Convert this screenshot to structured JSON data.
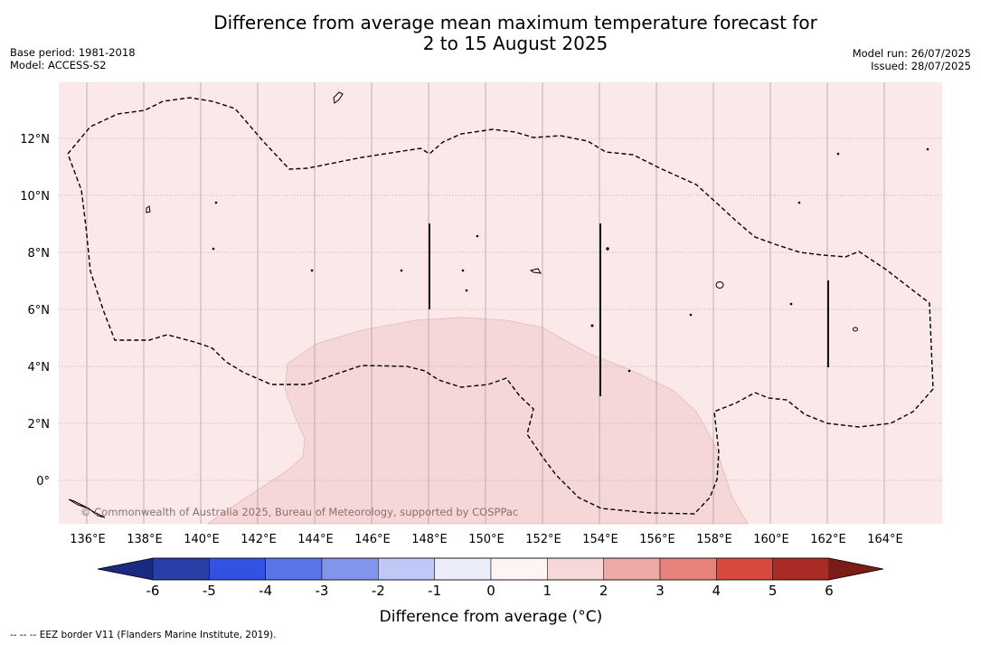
{
  "title": {
    "line1": "Difference from average mean maximum temperature forecast for",
    "line2": "2 to 15 August 2025"
  },
  "meta_left": {
    "base_period": "Base period: 1981-2018",
    "model": "Model: ACCESS-S2"
  },
  "meta_right": {
    "model_run": "Model run: 26/07/2025",
    "issued": "Issued: 28/07/2025"
  },
  "map": {
    "background_color": "#fbe9e9",
    "anomaly_area_color": "#f5d7d7",
    "lat_labels": [
      "12°N",
      "10°N",
      "8°N",
      "6°N",
      "4°N",
      "2°N",
      "0°"
    ],
    "lon_labels": [
      "136°E",
      "138°E",
      "140°E",
      "142°E",
      "144°E",
      "146°E",
      "148°E",
      "150°E",
      "152°E",
      "154°E",
      "156°E",
      "158°E",
      "160°E",
      "162°E",
      "164°E"
    ],
    "copyright": "© Commonwealth of Australia 2025, Bureau of Meteorology, supported by COSPPac"
  },
  "colorbar": {
    "label": "Difference from average (°C)",
    "ticks": [
      "-6",
      "-5",
      "-4",
      "-3",
      "-2",
      "-1",
      "0",
      "1",
      "2",
      "3",
      "4",
      "5",
      "6"
    ],
    "colors": [
      "#2a3ea8",
      "#3452e2",
      "#5a75e6",
      "#8394eb",
      "#c0c8f5",
      "#ebedfb",
      "#fef4f4",
      "#f6d8d8",
      "#edaba8",
      "#e5837c",
      "#d84940",
      "#a82b25"
    ],
    "under_color": "#1a2a80",
    "over_color": "#7a1d19"
  },
  "footnote": "-- -- -- EEZ border V11 (Flanders Marine Institute, 2019)."
}
